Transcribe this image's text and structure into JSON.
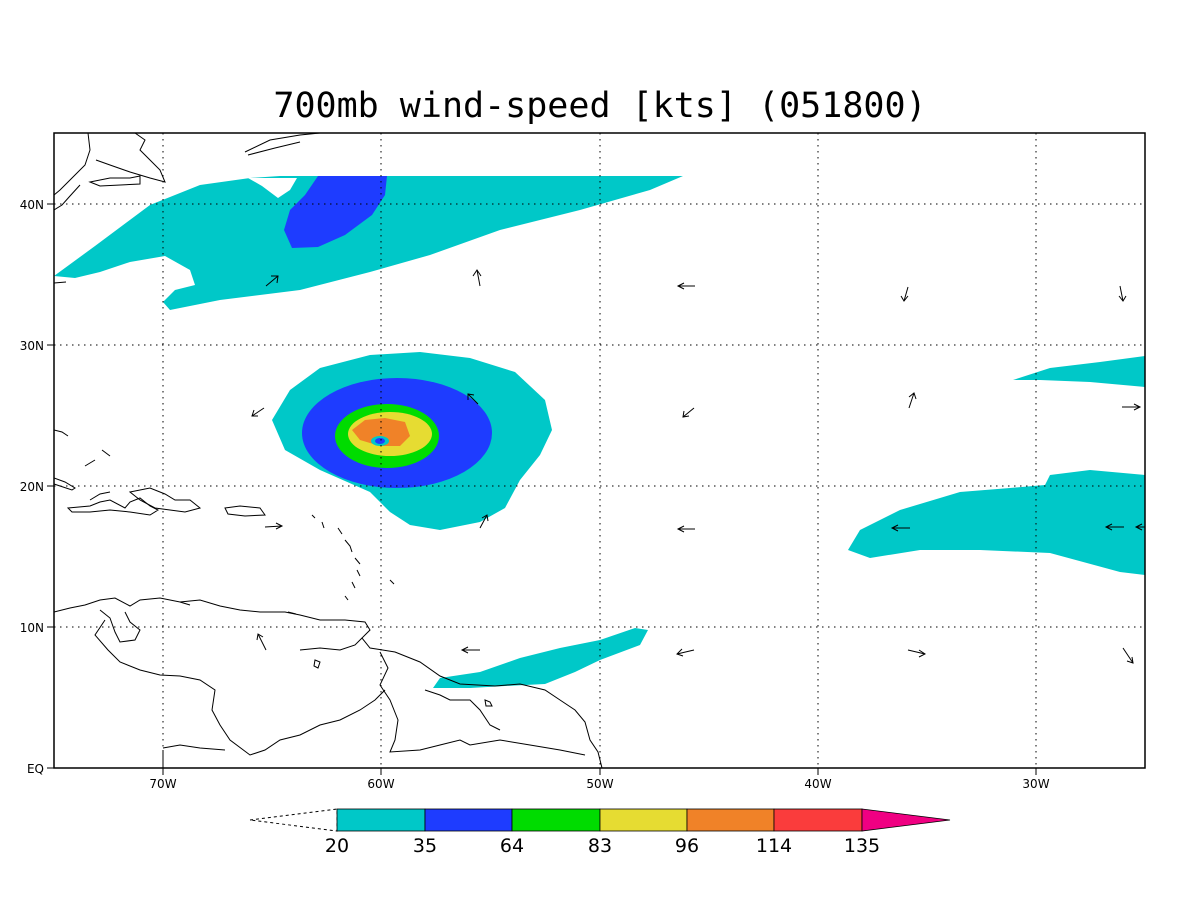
{
  "title": "700mb wind-speed [kts] (051800)",
  "map": {
    "projection": "lat-lon",
    "lon_range": [
      -75,
      -25
    ],
    "lat_range": [
      0,
      45
    ],
    "lon_ticks": [
      {
        "value": -70,
        "label": "70W"
      },
      {
        "value": -60,
        "label": "60W"
      },
      {
        "value": -50,
        "label": "50W"
      },
      {
        "value": -40,
        "label": "40W"
      },
      {
        "value": -30,
        "label": "30W"
      }
    ],
    "lat_ticks": [
      {
        "value": 0,
        "label": "EQ"
      },
      {
        "value": 10,
        "label": "10N"
      },
      {
        "value": 20,
        "label": "20N"
      },
      {
        "value": 30,
        "label": "30N"
      },
      {
        "value": 40,
        "label": "40N"
      }
    ],
    "grid": "dotted"
  },
  "colorbar": {
    "levels": [
      "20",
      "35",
      "64",
      "83",
      "96",
      "114",
      "135"
    ],
    "colors": [
      "#00c8c8",
      "#1e3cff",
      "#00dc00",
      "#e6dc32",
      "#f08228",
      "#fa3c3c",
      "#f00082"
    ],
    "extend": "both"
  },
  "storm_center": {
    "lon": -60,
    "lat": 23.2
  }
}
